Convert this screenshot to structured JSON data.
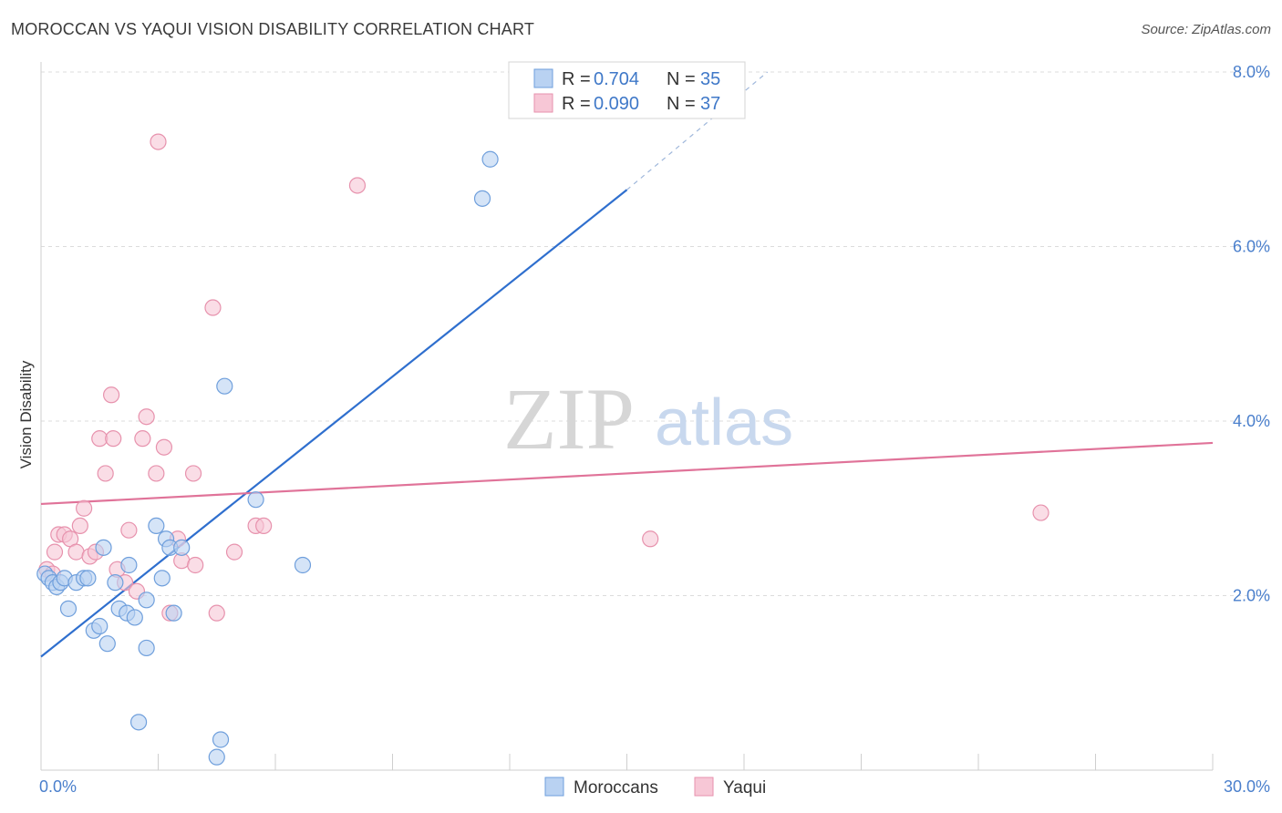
{
  "header": {
    "title": "MOROCCAN VS YAQUI VISION DISABILITY CORRELATION CHART",
    "source": "Source: ZipAtlas.com"
  },
  "watermark": {
    "zip": "ZIP",
    "atlas": "atlas"
  },
  "colors": {
    "blue_fill": "#b9d2f2",
    "blue_stroke": "#6f9fdc",
    "blue_line": "#2f6fce",
    "pink_fill": "#f7c7d6",
    "pink_stroke": "#e792ad",
    "pink_line": "#e07399",
    "grid": "#dcdcdc",
    "tick_text": "#4a7fcc"
  },
  "legend": {
    "rows": [
      {
        "r_label": "R =",
        "r_value": "0.704",
        "n_label": "N =",
        "n_value": "35"
      },
      {
        "r_label": "R =",
        "r_value": "0.090",
        "n_label": "N =",
        "n_value": "37"
      }
    ]
  },
  "chart_data": {
    "type": "scatter",
    "title": "MOROCCAN VS YAQUI VISION DISABILITY CORRELATION CHART",
    "xlabel": "",
    "ylabel": "Vision Disability",
    "xlim": [
      0,
      30
    ],
    "ylim": [
      0,
      8
    ],
    "x_tick_labels": [
      "0.0%",
      "30.0%"
    ],
    "y_ticks": [
      2,
      4,
      6,
      8
    ],
    "y_tick_labels": [
      "2.0%",
      "4.0%",
      "6.0%",
      "8.0%"
    ],
    "legend_position": "top-center",
    "series": [
      {
        "name": "Moroccans",
        "r": 0.704,
        "n": 35,
        "trend": {
          "x0": 0,
          "y0": 1.3,
          "x1": 15,
          "y1": 6.65,
          "dash_to_x": 18.6,
          "dash_to_y": 8.0
        },
        "points": [
          [
            0.1,
            2.25
          ],
          [
            0.2,
            2.2
          ],
          [
            0.3,
            2.15
          ],
          [
            0.4,
            2.1
          ],
          [
            0.5,
            2.15
          ],
          [
            0.6,
            2.2
          ],
          [
            0.7,
            1.85
          ],
          [
            0.9,
            2.15
          ],
          [
            1.1,
            2.2
          ],
          [
            1.2,
            2.2
          ],
          [
            1.35,
            1.6
          ],
          [
            1.5,
            1.65
          ],
          [
            1.6,
            2.55
          ],
          [
            1.7,
            1.45
          ],
          [
            1.9,
            2.15
          ],
          [
            2.0,
            1.85
          ],
          [
            2.2,
            1.8
          ],
          [
            2.25,
            2.35
          ],
          [
            2.4,
            1.75
          ],
          [
            2.5,
            0.55
          ],
          [
            2.7,
            1.95
          ],
          [
            2.7,
            1.4
          ],
          [
            2.95,
            2.8
          ],
          [
            3.1,
            2.2
          ],
          [
            3.2,
            2.65
          ],
          [
            3.3,
            2.55
          ],
          [
            3.4,
            1.8
          ],
          [
            3.6,
            2.55
          ],
          [
            4.6,
            0.35
          ],
          [
            4.5,
            0.15
          ],
          [
            4.7,
            4.4
          ],
          [
            5.5,
            3.1
          ],
          [
            6.7,
            2.35
          ],
          [
            11.3,
            6.55
          ],
          [
            11.5,
            7.0
          ]
        ]
      },
      {
        "name": "Yaqui",
        "r": 0.09,
        "n": 37,
        "trend": {
          "x0": 0,
          "y0": 3.05,
          "x1": 30,
          "y1": 3.75
        },
        "points": [
          [
            0.15,
            2.3
          ],
          [
            0.3,
            2.25
          ],
          [
            0.35,
            2.5
          ],
          [
            0.45,
            2.7
          ],
          [
            0.6,
            2.7
          ],
          [
            0.75,
            2.65
          ],
          [
            0.9,
            2.5
          ],
          [
            1.0,
            2.8
          ],
          [
            1.1,
            3.0
          ],
          [
            1.25,
            2.45
          ],
          [
            1.4,
            2.5
          ],
          [
            1.5,
            3.8
          ],
          [
            1.65,
            3.4
          ],
          [
            1.8,
            4.3
          ],
          [
            1.85,
            3.8
          ],
          [
            1.95,
            2.3
          ],
          [
            2.15,
            2.15
          ],
          [
            2.25,
            2.75
          ],
          [
            2.45,
            2.05
          ],
          [
            2.6,
            3.8
          ],
          [
            2.7,
            4.05
          ],
          [
            2.95,
            3.4
          ],
          [
            3.0,
            7.2
          ],
          [
            3.15,
            3.7
          ],
          [
            3.3,
            1.8
          ],
          [
            3.5,
            2.65
          ],
          [
            3.6,
            2.4
          ],
          [
            3.9,
            3.4
          ],
          [
            3.95,
            2.35
          ],
          [
            4.4,
            5.3
          ],
          [
            4.5,
            1.8
          ],
          [
            4.95,
            2.5
          ],
          [
            5.5,
            2.8
          ],
          [
            5.7,
            2.8
          ],
          [
            8.1,
            6.7
          ],
          [
            15.6,
            2.65
          ],
          [
            25.6,
            2.95
          ]
        ]
      }
    ]
  }
}
